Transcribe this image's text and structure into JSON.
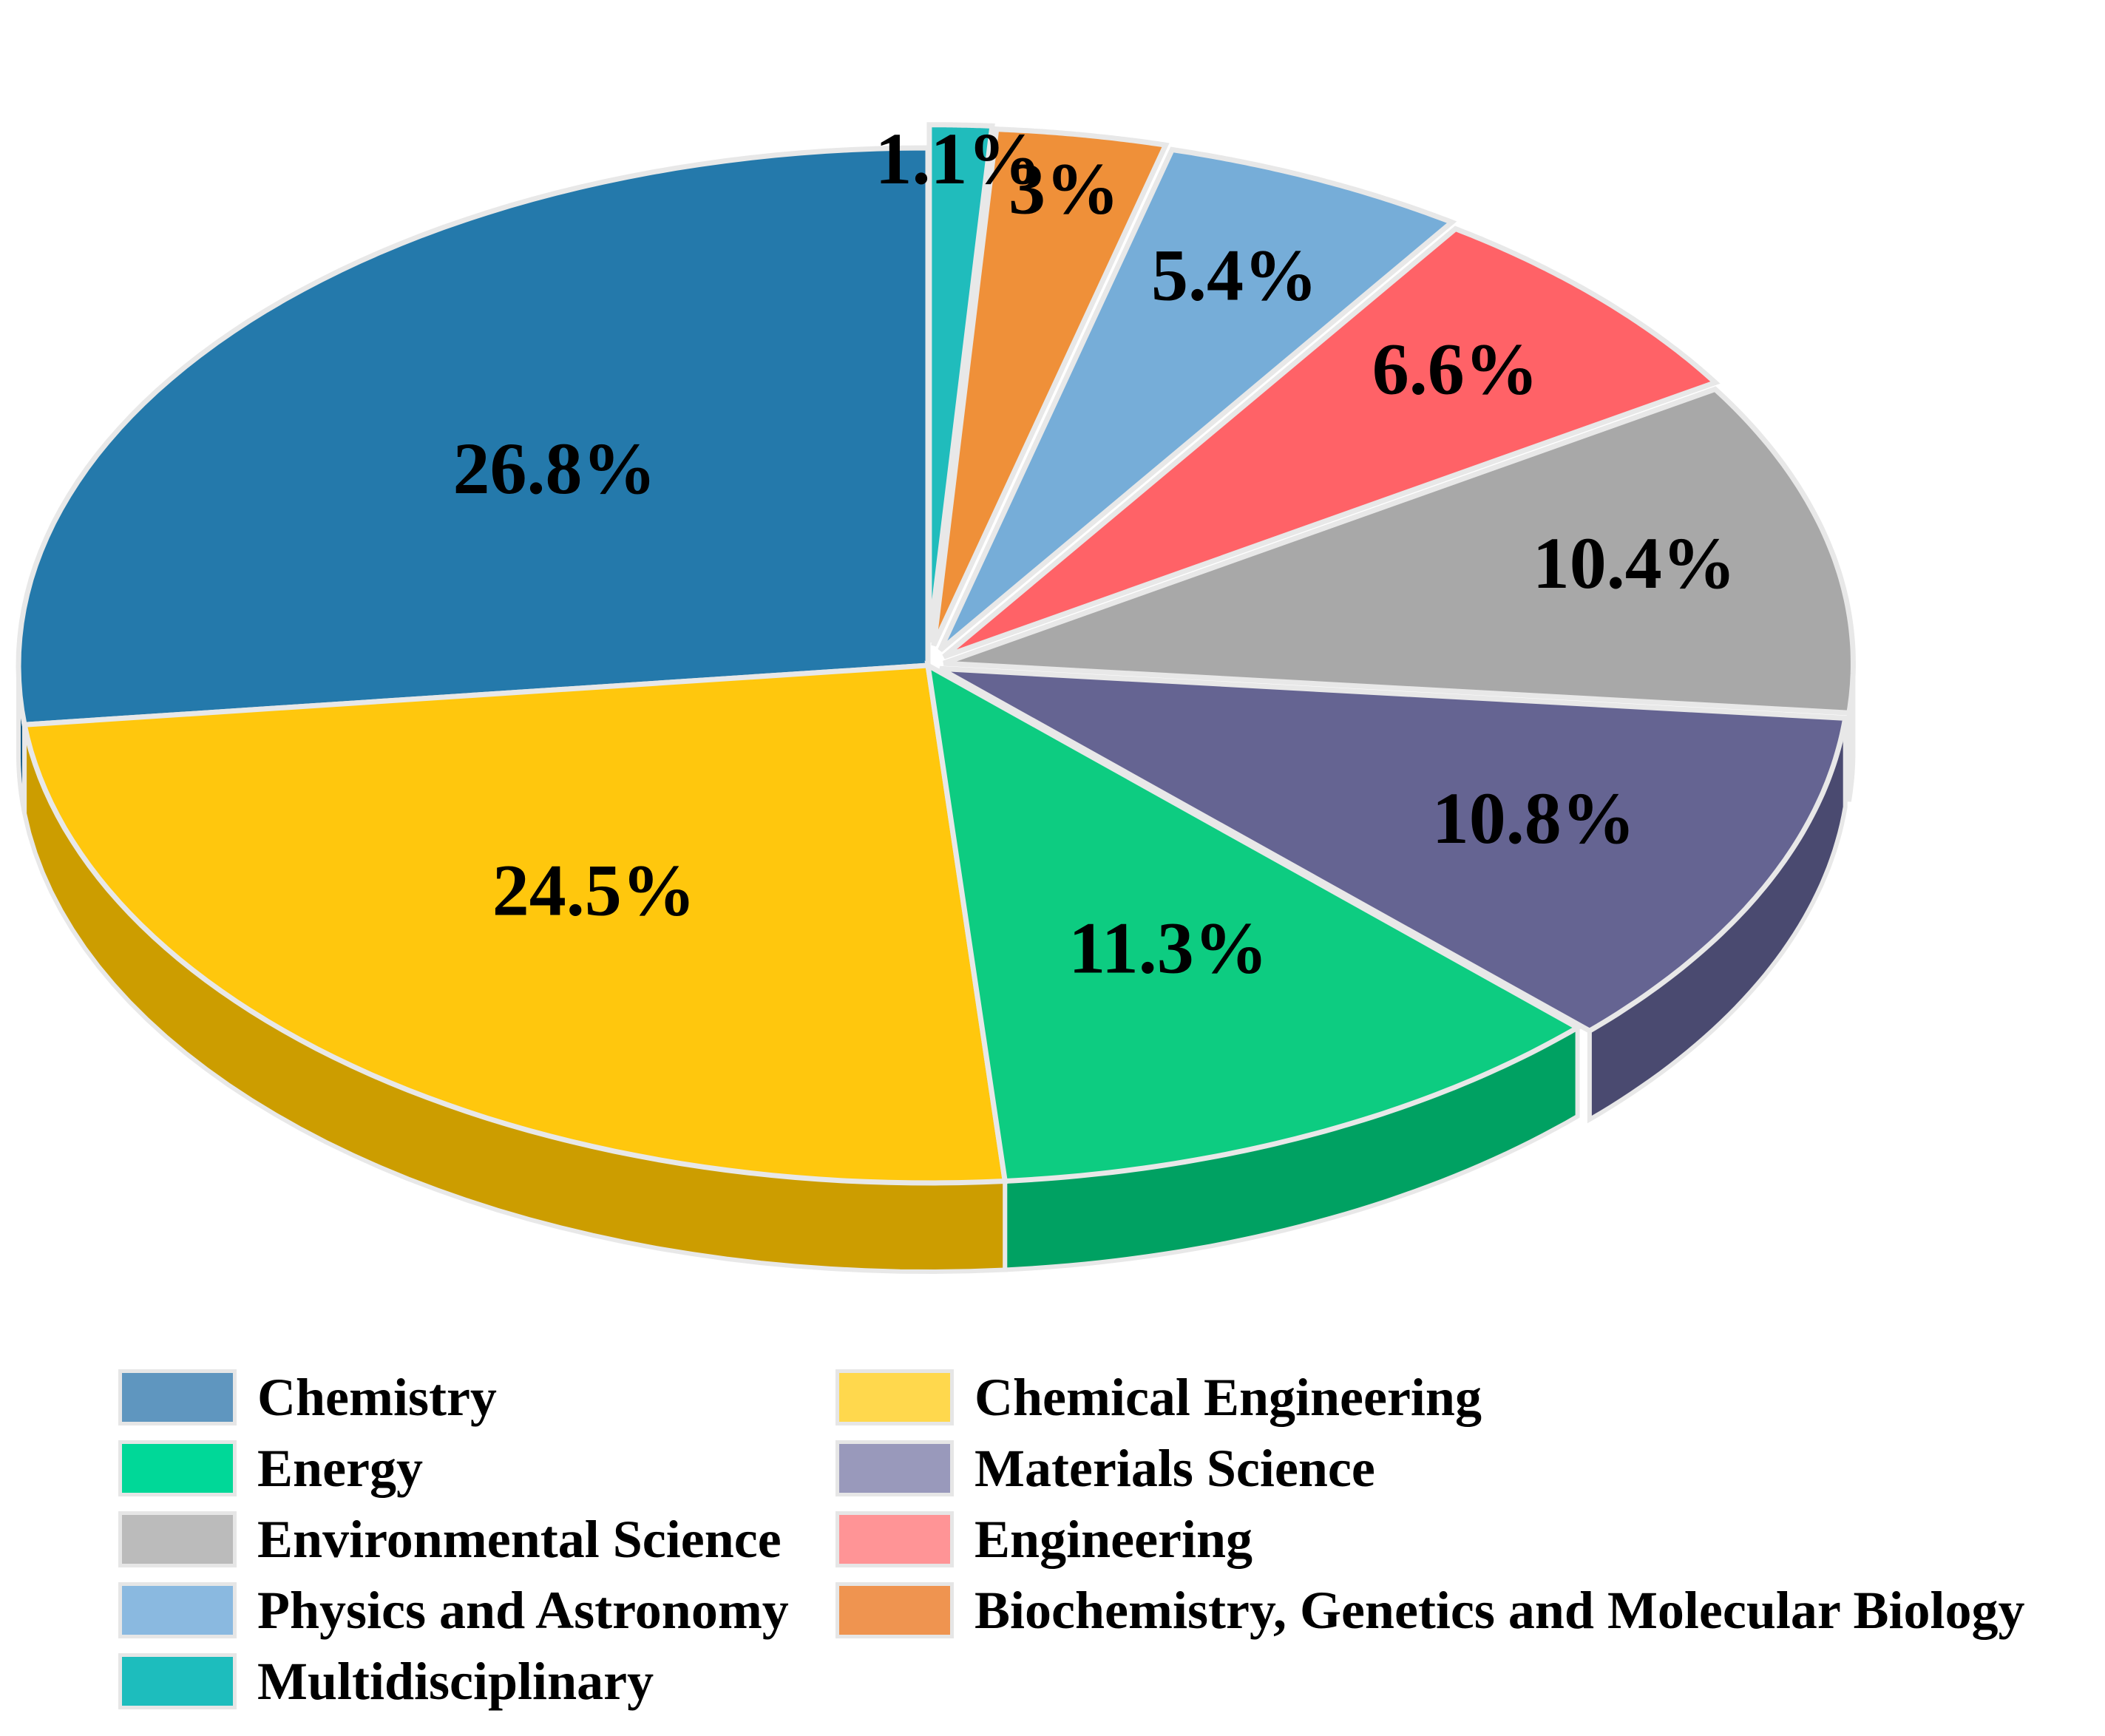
{
  "chart_data": {
    "type": "pie",
    "style": "3d-exploded",
    "title": "",
    "slices": [
      {
        "name": "Chemistry",
        "value": 26.8,
        "label": "26.8%",
        "color": "#1872a6"
      },
      {
        "name": "Chemical Engineering",
        "value": 24.5,
        "label": "24.5%",
        "color": "#ffc400"
      },
      {
        "name": "Energy",
        "value": 11.3,
        "label": "11.3%",
        "color": "#00c97a"
      },
      {
        "name": "Materials Science",
        "value": 10.8,
        "label": "10.8%",
        "color": "#5d5c8c"
      },
      {
        "name": "Environmental Science",
        "value": 10.4,
        "label": "10.4%",
        "color": "#a3a3a3"
      },
      {
        "name": "Engineering",
        "value": 6.6,
        "label": "6.6%",
        "color": "#ff5a5f"
      },
      {
        "name": "Physics and Astronomy",
        "value": 5.4,
        "label": "5.4%",
        "color": "#6fa9d6"
      },
      {
        "name": "Biochemistry, Genetics and Molecular Biology",
        "value": 3.0,
        "label": "3%",
        "color": "#ee8a2e"
      },
      {
        "name": "Multidisciplinary",
        "value": 1.1,
        "label": "1.1%",
        "color": "#14b8b8"
      }
    ],
    "legend": {
      "placement": "bottom",
      "columns": 2,
      "items": [
        {
          "label": "Chemistry",
          "color": "#5f96bf"
        },
        {
          "label": "Chemical Engineering",
          "color": "#ffd84d"
        },
        {
          "label": "Energy",
          "color": "#00d898"
        },
        {
          "label": "Materials Science",
          "color": "#9999bb"
        },
        {
          "label": "Environmental Science",
          "color": "#bbbbbb"
        },
        {
          "label": "Engineering",
          "color": "#ff9496"
        },
        {
          "label": "Physics and Astronomy",
          "color": "#8ab9e0"
        },
        {
          "label": "Biochemistry, Genetics and Molecular Biology",
          "color": "#ef9450"
        },
        {
          "label": "Multidisciplinary",
          "color": "#1dbdbd"
        }
      ]
    }
  }
}
